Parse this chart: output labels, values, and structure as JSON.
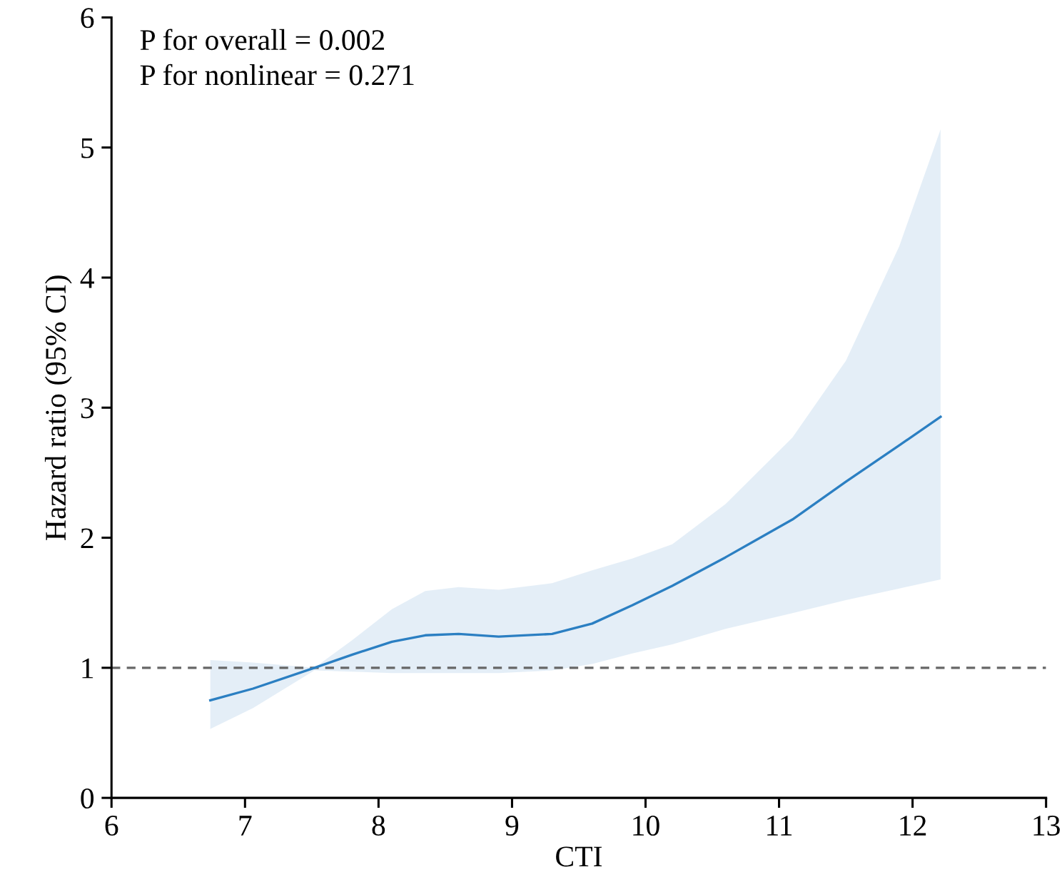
{
  "chart_data": {
    "type": "line",
    "xlabel": "CTI",
    "ylabel": "Hazard ratio (95% CI)",
    "annotations": [
      "P for overall = 0.002",
      "P for nonlinear = 0.271"
    ],
    "x": [
      6.74,
      7.06,
      7.52,
      7.8,
      8.1,
      8.35,
      8.6,
      8.9,
      9.3,
      9.6,
      9.9,
      10.2,
      10.6,
      11.1,
      11.5,
      11.9,
      12.21
    ],
    "series": [
      {
        "color": "#2b7fc2",
        "values": [
          0.75,
          0.84,
          1.0,
          1.1,
          1.2,
          1.25,
          1.26,
          1.24,
          1.26,
          1.34,
          1.48,
          1.63,
          1.85,
          2.14,
          2.43,
          2.71,
          2.93
        ],
        "lower": [
          0.53,
          0.69,
          0.98,
          0.97,
          0.96,
          0.96,
          0.96,
          0.96,
          0.98,
          1.03,
          1.11,
          1.18,
          1.3,
          1.42,
          1.52,
          1.61,
          1.68
        ],
        "upper": [
          1.06,
          1.04,
          1.0,
          1.21,
          1.45,
          1.59,
          1.62,
          1.6,
          1.65,
          1.75,
          1.84,
          1.95,
          2.26,
          2.77,
          3.36,
          4.24,
          5.14
        ]
      }
    ],
    "ref_lines": [
      {
        "axis": "y",
        "value": 1,
        "color": "#666666",
        "line_style": "dashed"
      }
    ],
    "xlim": [
      6,
      13
    ],
    "xticks": [
      6,
      7,
      8,
      9,
      10,
      11,
      12,
      13
    ],
    "ylim": [
      0,
      6
    ],
    "yticks": [
      0,
      1,
      2,
      3,
      4,
      5,
      6
    ],
    "grid": false,
    "legend": false,
    "marker": "none",
    "line_style": "solid"
  }
}
